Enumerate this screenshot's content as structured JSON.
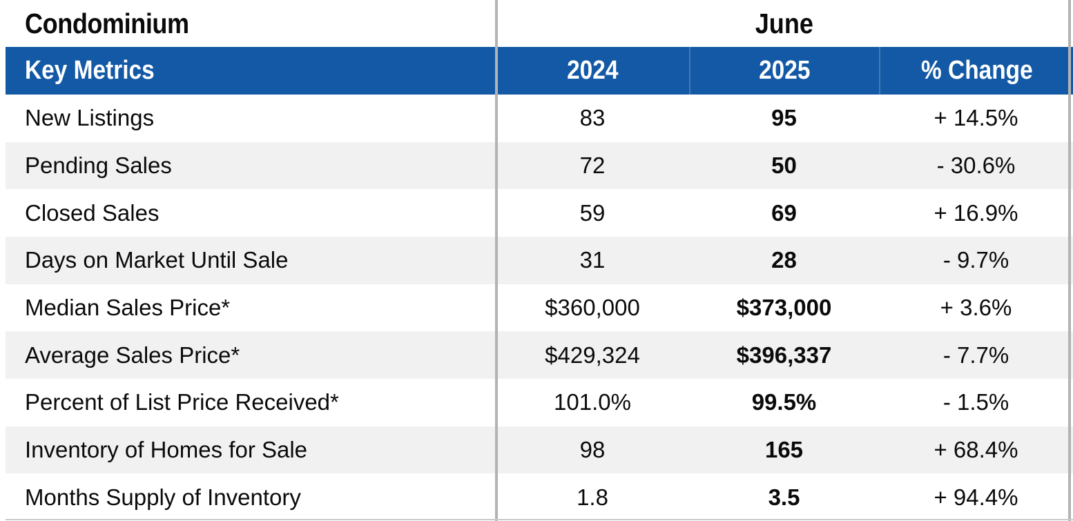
{
  "table": {
    "title_left": "Condominium",
    "title_right": "June",
    "header": {
      "metric": "Key Metrics",
      "col_2024": "2024",
      "col_2025": "2025",
      "change": "% Change"
    },
    "rows": [
      {
        "metric": "New Listings",
        "y2024": "83",
        "y2025": "95",
        "change": "+ 14.5%"
      },
      {
        "metric": "Pending Sales",
        "y2024": "72",
        "y2025": "50",
        "change": "- 30.6%"
      },
      {
        "metric": "Closed Sales",
        "y2024": "59",
        "y2025": "69",
        "change": "+ 16.9%"
      },
      {
        "metric": "Days on Market Until Sale",
        "y2024": "31",
        "y2025": "28",
        "change": "- 9.7%"
      },
      {
        "metric": "Median Sales Price*",
        "y2024": "$360,000",
        "y2025": "$373,000",
        "change": "+ 3.6%"
      },
      {
        "metric": "Average Sales Price*",
        "y2024": "$429,324",
        "y2025": "$396,337",
        "change": "- 7.7%"
      },
      {
        "metric": "Percent of List Price Received*",
        "y2024": "101.0%",
        "y2025": "99.5%",
        "change": "- 1.5%"
      },
      {
        "metric": "Inventory of Homes for Sale",
        "y2024": "98",
        "y2025": "165",
        "change": "+ 68.4%"
      },
      {
        "metric": "Months Supply of Inventory",
        "y2024": "1.8",
        "y2025": "3.5",
        "change": "+ 94.4%"
      }
    ],
    "colors": {
      "header_bg": "#1359a5",
      "header_divider": "#4579b4",
      "stripe": "#f1f1f1",
      "divider_line": "#b3b3b3",
      "bottom_line": "#c9c9c9",
      "header_text": "#ffffff",
      "body_text": "#0a0a0a"
    }
  }
}
